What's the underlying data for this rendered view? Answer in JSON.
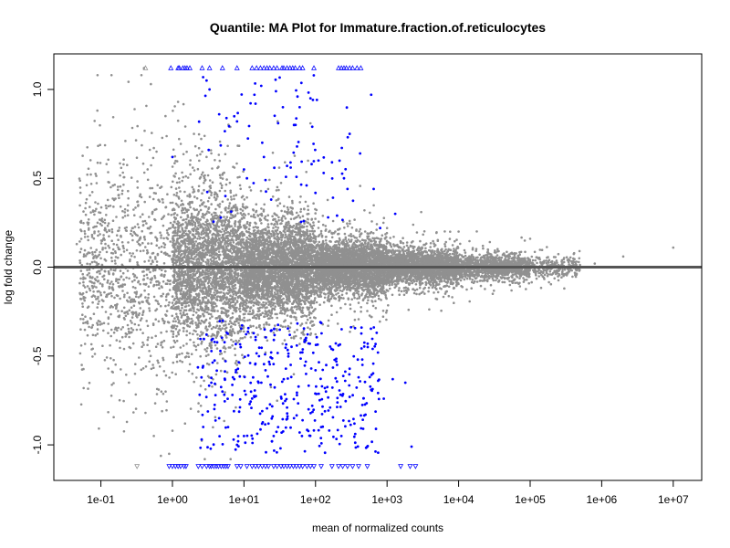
{
  "chart_data": {
    "type": "scatter",
    "title": "Quantile: MA Plot for Immature.fraction.of.reticulocytes",
    "xlabel": "mean of normalized counts",
    "ylabel": "log fold change",
    "x_scale": "log10",
    "xlim": [
      0.022,
      25000000
    ],
    "ylim": [
      -1.2,
      1.2
    ],
    "x_ticks": [
      "1e-01",
      "1e+00",
      "1e+01",
      "1e+02",
      "1e+03",
      "1e+04",
      "1e+05",
      "1e+06",
      "1e+07"
    ],
    "x_tick_values": [
      0.1,
      1,
      10,
      100,
      1000,
      10000,
      100000,
      1000000,
      10000000
    ],
    "y_ticks": [
      "1.0",
      "0.5",
      "0.0",
      "-0.5",
      "-1.0"
    ],
    "y_tick_values": [
      1.0,
      0.5,
      0.0,
      -0.5,
      -1.0
    ],
    "reference_line_y": 0,
    "grid": false,
    "legend": "none",
    "series": [
      {
        "role": "not-significant",
        "color": "#909090",
        "marker": "dot",
        "points": [
          [
            0.046,
            0.13
          ],
          [
            0.06,
            0.17
          ],
          [
            0.07,
            0.08
          ],
          [
            0.09,
            0.25
          ],
          [
            0.1,
            0.05
          ],
          [
            0.12,
            0.58
          ],
          [
            0.13,
            -0.15
          ],
          [
            0.15,
            0.34
          ],
          [
            0.18,
            -0.28
          ],
          [
            0.2,
            0.14
          ],
          [
            0.22,
            0.71
          ],
          [
            0.25,
            -0.45
          ],
          [
            0.28,
            0.22
          ],
          [
            0.3,
            -0.6
          ],
          [
            0.35,
            0.4
          ],
          [
            0.4,
            1.12
          ],
          [
            0.42,
            -0.82
          ],
          [
            0.45,
            0.55
          ],
          [
            0.5,
            1.03
          ],
          [
            0.55,
            -0.95
          ],
          [
            0.6,
            0.65
          ],
          [
            0.7,
            -0.7
          ],
          [
            0.8,
            0.85
          ],
          [
            0.9,
            -1.05
          ],
          [
            1.2,
            0.93
          ],
          [
            1.5,
            -0.88
          ],
          [
            2.0,
            0.75
          ],
          [
            2.5,
            -0.78
          ],
          [
            3.0,
            0.62
          ],
          [
            4.0,
            -0.66
          ],
          [
            5.0,
            0.52
          ],
          [
            8.0,
            -0.55
          ],
          [
            12.0,
            0.45
          ],
          [
            20.0,
            -0.48
          ],
          [
            30.0,
            0.38
          ],
          [
            50.0,
            -0.4
          ],
          [
            80.0,
            0.3
          ],
          [
            150.0,
            -0.33
          ],
          [
            300.0,
            0.26
          ],
          [
            600.0,
            -0.28
          ],
          [
            1000.0,
            0.22
          ],
          [
            2000.0,
            -0.24
          ],
          [
            3000.0,
            0.31
          ],
          [
            5000.0,
            -0.18
          ],
          [
            10000.0,
            0.2
          ],
          [
            30000.0,
            -0.15
          ],
          [
            100000.0,
            0.16
          ],
          [
            300000.0,
            -0.12
          ],
          [
            800000.0,
            0.02
          ],
          [
            2000000.0,
            0.06
          ],
          [
            10000000.0,
            0.11
          ]
        ],
        "density": [
          {
            "log10_x": [
              -1.3,
              0.0
            ],
            "sd": 0.28,
            "n": 900
          },
          {
            "log10_x": [
              0.0,
              1.0
            ],
            "sd": 0.21,
            "n": 2600
          },
          {
            "log10_x": [
              1.0,
              2.0
            ],
            "sd": 0.13,
            "n": 3300
          },
          {
            "log10_x": [
              2.0,
              3.0
            ],
            "sd": 0.075,
            "n": 3000
          },
          {
            "log10_x": [
              3.0,
              4.0
            ],
            "sd": 0.05,
            "n": 2200
          },
          {
            "log10_x": [
              4.0,
              5.0
            ],
            "sd": 0.035,
            "n": 1200
          },
          {
            "log10_x": [
              5.0,
              5.7
            ],
            "sd": 0.03,
            "n": 250
          }
        ]
      },
      {
        "role": "significant",
        "color": "#0000ff",
        "marker": "dot",
        "points": [
          [
            1.0,
            0.62
          ],
          [
            3.0,
            1.05
          ],
          [
            3.3,
            1.0
          ],
          [
            4.5,
            0.86
          ],
          [
            5.5,
            0.4
          ],
          [
            8.0,
            0.82
          ],
          [
            10.0,
            0.55
          ],
          [
            11.0,
            0.5
          ],
          [
            14.0,
            0.97
          ],
          [
            14.5,
            0.92
          ],
          [
            18.0,
            0.7
          ],
          [
            19.0,
            0.62
          ],
          [
            20.0,
            0.49
          ],
          [
            24.0,
            0.38
          ],
          [
            28.0,
            0.99
          ],
          [
            30.0,
            0.81
          ],
          [
            35.0,
            0.9
          ],
          [
            40.0,
            0.57
          ],
          [
            45.0,
            0.56
          ],
          [
            50.0,
            0.8
          ],
          [
            56.0,
            0.96
          ],
          [
            60.0,
            0.9
          ],
          [
            75.0,
            0.46
          ],
          [
            85.0,
            0.95
          ],
          [
            90.0,
            0.79
          ],
          [
            110.0,
            0.6
          ],
          [
            130.0,
            0.53
          ],
          [
            150.0,
            0.28
          ],
          [
            170.0,
            0.59
          ],
          [
            200.0,
            0.29
          ],
          [
            250.0,
            0.5
          ],
          [
            280.0,
            0.44
          ],
          [
            300.0,
            0.75
          ],
          [
            420.0,
            0.64
          ],
          [
            600.0,
            0.97
          ],
          [
            650.0,
            0.44
          ],
          [
            800.0,
            0.22
          ],
          [
            1300.0,
            0.3
          ],
          [
            3.0,
            -0.38
          ],
          [
            3.5,
            -0.65
          ],
          [
            4.0,
            -0.72
          ],
          [
            4.5,
            -0.85
          ],
          [
            5.0,
            -0.7
          ],
          [
            6.0,
            -0.9
          ],
          [
            7.0,
            -0.62
          ],
          [
            8.0,
            -1.0
          ],
          [
            9.0,
            -0.45
          ],
          [
            10.0,
            -0.95
          ],
          [
            12.0,
            -0.77
          ],
          [
            14.0,
            -0.73
          ],
          [
            16.0,
            -0.65
          ],
          [
            18.0,
            -0.81
          ],
          [
            20.0,
            -0.58
          ],
          [
            22.0,
            -0.88
          ],
          [
            24.0,
            -0.48
          ],
          [
            26.0,
            -0.95
          ],
          [
            30.0,
            -0.9
          ],
          [
            33.0,
            -0.73
          ],
          [
            36.0,
            -0.63
          ],
          [
            40.0,
            -0.79
          ],
          [
            45.0,
            -0.55
          ],
          [
            50.0,
            -0.85
          ],
          [
            55.0,
            -0.72
          ],
          [
            60.0,
            -0.93
          ],
          [
            70.0,
            -0.42
          ],
          [
            80.0,
            -0.8
          ],
          [
            90.0,
            -0.78
          ],
          [
            100.0,
            -0.58
          ],
          [
            120.0,
            -0.9
          ],
          [
            140.0,
            -0.7
          ],
          [
            160.0,
            -0.79
          ],
          [
            200.0,
            -0.55
          ],
          [
            230.0,
            -0.95
          ],
          [
            260.0,
            -0.64
          ],
          [
            300.0,
            -0.73
          ],
          [
            350.0,
            -0.88
          ],
          [
            400.0,
            -0.62
          ],
          [
            450.0,
            -0.52
          ],
          [
            500.0,
            -0.83
          ],
          [
            600.0,
            -0.69
          ],
          [
            700.0,
            -0.91
          ],
          [
            900.0,
            -0.74
          ],
          [
            1200.0,
            -0.63
          ],
          [
            1800.0,
            -0.65
          ],
          [
            2200.0,
            -1.01
          ]
        ],
        "clusters": [
          {
            "log10_x": [
              0.35,
              2.55
            ],
            "y": [
              0.25,
              1.08
            ],
            "n": 60
          },
          {
            "log10_x": [
              0.35,
              2.9
            ],
            "y": [
              -1.05,
              -0.3
            ],
            "n": 330
          }
        ]
      },
      {
        "role": "significant-offscale-up",
        "color": "#0000ff",
        "marker": "triangle-up",
        "y_clipped": 1.12,
        "x": [
          0.95,
          1.2,
          1.25,
          1.4,
          1.5,
          1.6,
          1.75,
          2.6,
          3.3,
          5.0,
          8.0,
          13.0,
          15.0,
          17.0,
          19.0,
          21.0,
          23.0,
          26.0,
          29.0,
          34.0,
          36.0,
          40.0,
          44.0,
          48.0,
          52.0,
          60.0,
          66.0,
          95.0,
          210.0,
          230.0,
          250.0,
          270.0,
          300.0,
          330.0,
          380.0,
          430.0
        ]
      },
      {
        "role": "offscale-up",
        "color": "#909090",
        "marker": "triangle-up",
        "y_clipped": 1.12,
        "x": [
          0.42
        ]
      },
      {
        "role": "significant-offscale-down",
        "color": "#0000ff",
        "marker": "triangle-down",
        "y_clipped": -1.12,
        "x": [
          0.9,
          1.0,
          1.1,
          1.2,
          1.3,
          1.45,
          1.55,
          2.3,
          2.6,
          3.0,
          3.3,
          3.5,
          3.8,
          4.1,
          4.4,
          4.8,
          5.2,
          5.6,
          6.0,
          8.0,
          9.0,
          11.0,
          13.0,
          14.5,
          16.0,
          18.0,
          20.0,
          22.0,
          26.0,
          29.0,
          33.0,
          36.0,
          40.0,
          44.0,
          49.0,
          54.0,
          60.0,
          66.0,
          76.0,
          85.0,
          95.0,
          120.0,
          170.0,
          210.0,
          240.0,
          280.0,
          330.0,
          400.0,
          530.0,
          1550.0,
          2100.0,
          2500.0
        ]
      },
      {
        "role": "offscale-down",
        "color": "#909090",
        "marker": "triangle-down",
        "y_clipped": -1.12,
        "x": [
          0.32
        ]
      }
    ]
  }
}
